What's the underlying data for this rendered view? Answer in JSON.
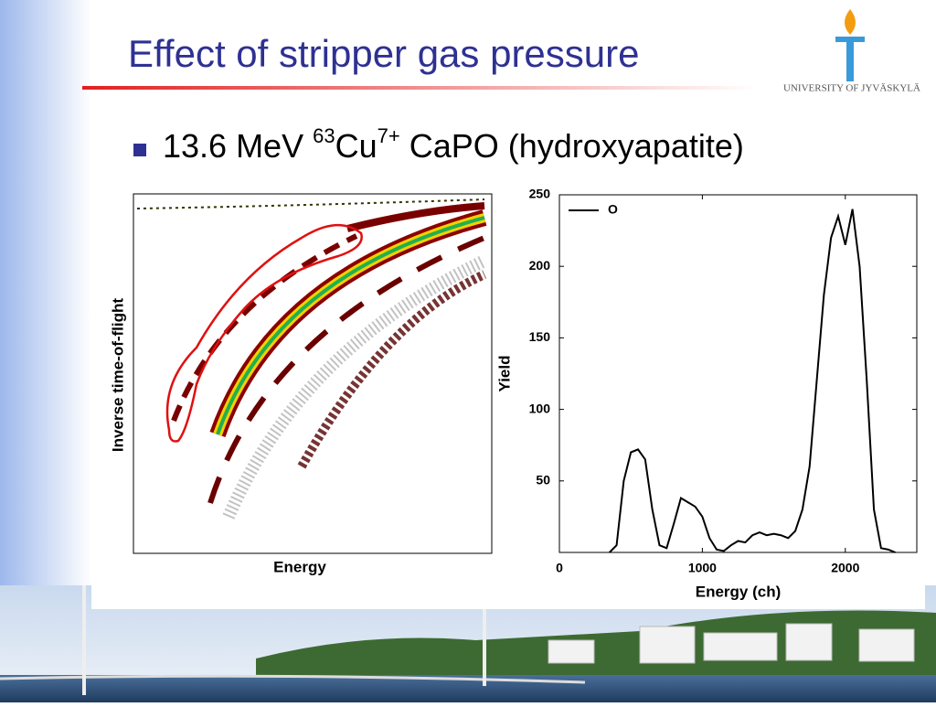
{
  "title": "Effect of stripper gas pressure",
  "logo": "UNIVERSITY OF JYVÄSKYLÄ",
  "bullet": {
    "parts": [
      "13.6 MeV ",
      "63",
      "Cu",
      "7+",
      " CaPO (hydroxyapatite)"
    ]
  },
  "left_plot": {
    "xlabel": "Energy",
    "ylabel": "Inverse time-of-flight"
  },
  "chart_data": {
    "type": "line",
    "xlabel": "Energy (ch)",
    "ylabel": "Yield",
    "x": [
      350,
      400,
      450,
      500,
      550,
      600,
      650,
      700,
      750,
      800,
      850,
      900,
      950,
      1000,
      1050,
      1100,
      1150,
      1200,
      1250,
      1300,
      1350,
      1400,
      1450,
      1500,
      1550,
      1600,
      1650,
      1700,
      1750,
      1800,
      1850,
      1900,
      1950,
      2000,
      2050,
      2100,
      2150,
      2200,
      2250,
      2300,
      2350
    ],
    "series": [
      {
        "name": "O",
        "color": "#000000",
        "values": [
          0,
          5,
          50,
          70,
          72,
          65,
          30,
          5,
          3,
          20,
          38,
          35,
          32,
          25,
          10,
          2,
          1,
          5,
          8,
          7,
          12,
          14,
          12,
          13,
          12,
          10,
          15,
          30,
          60,
          120,
          180,
          220,
          235,
          215,
          240,
          200,
          120,
          30,
          3,
          2,
          0
        ]
      }
    ],
    "xlim": [
      0,
      2500
    ],
    "xticks": [
      0,
      1000,
      2000
    ],
    "ylim": [
      0,
      250
    ],
    "yticks": [
      50,
      100,
      150,
      200,
      250
    ],
    "legend": "upper left"
  }
}
